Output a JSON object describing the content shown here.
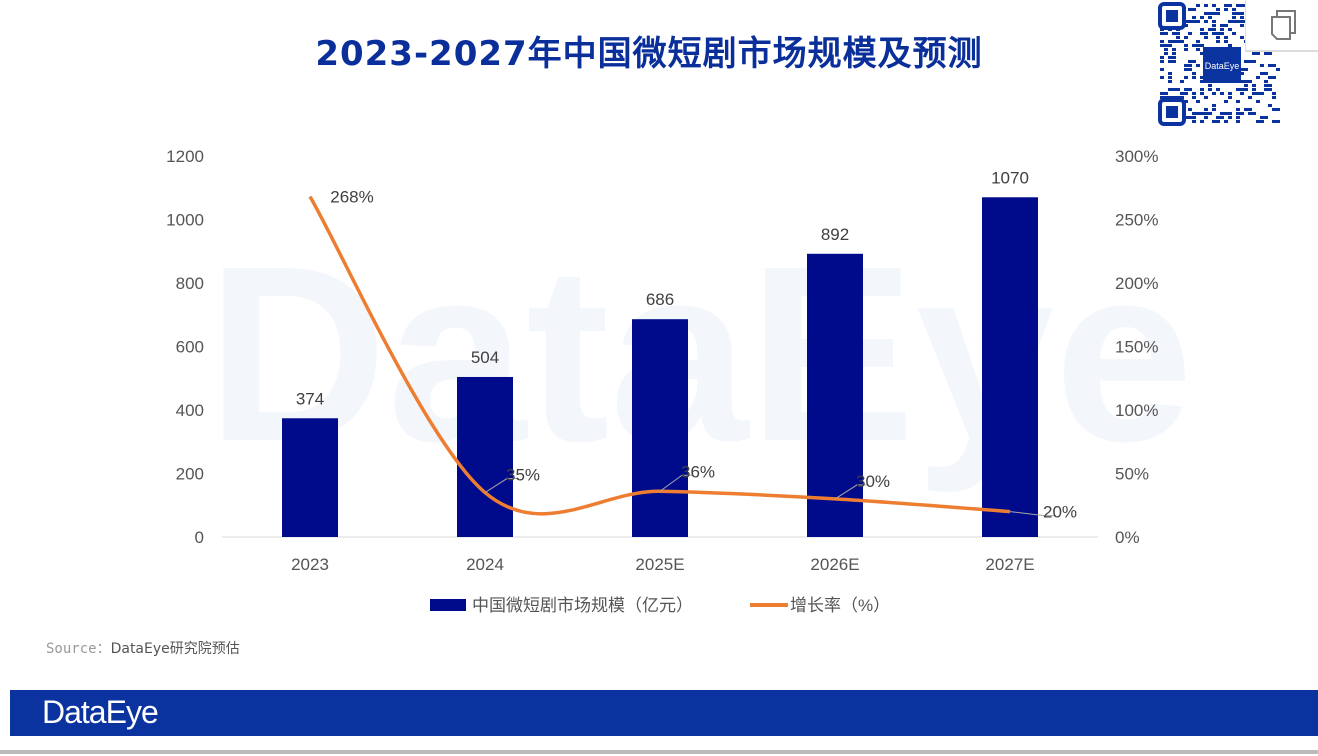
{
  "title": "2023-2027年中国微短剧市场规模及预测",
  "watermark": "DataEye",
  "source_label": "Source：",
  "source_text": "DataEye研究院预估",
  "banner_logo": "DataEye",
  "qr_logo": "DataEye",
  "colors": {
    "bar": "#000b8c",
    "line": "#ed7d31",
    "brand": "#0a33a0"
  },
  "chart_data": {
    "type": "bar+line",
    "title": "2023-2027年中国微短剧市场规模及预测",
    "categories": [
      "2023",
      "2024",
      "2025E",
      "2026E",
      "2027E"
    ],
    "series": [
      {
        "name": "中国微短剧市场规模（亿元）",
        "type": "bar",
        "axis": "left",
        "values": [
          374,
          504,
          686,
          892,
          1070
        ],
        "labels": [
          "374",
          "504",
          "686",
          "892",
          "1070"
        ]
      },
      {
        "name": "增长率（%）",
        "type": "line",
        "axis": "right",
        "values": [
          268,
          35,
          36,
          30,
          20
        ],
        "labels": [
          "268%",
          "35%",
          "36%",
          "30%",
          "20%"
        ]
      }
    ],
    "left_axis": {
      "range": [
        0,
        1200
      ],
      "ticks": [
        "0",
        "200",
        "400",
        "600",
        "800",
        "1000",
        "1200"
      ]
    },
    "right_axis": {
      "range": [
        0,
        300
      ],
      "ticks": [
        "0%",
        "50%",
        "100%",
        "150%",
        "200%",
        "250%",
        "300%"
      ]
    },
    "grid": false,
    "legend_position": "bottom"
  }
}
